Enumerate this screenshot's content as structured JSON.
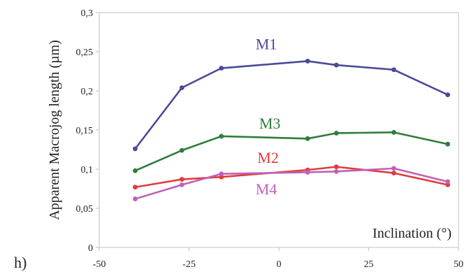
{
  "panel_label": "h)",
  "chart_data": {
    "type": "line",
    "xlabel": "Inclination (°)",
    "ylabel": "Apparent Macrojog length (µm)",
    "xlim": [
      -50,
      50
    ],
    "ylim": [
      0,
      0.3
    ],
    "x_ticks": [
      -50,
      -25,
      0,
      25,
      50
    ],
    "y_ticks": [
      0,
      0.05,
      0.1,
      0.15,
      0.2,
      0.25,
      0.3
    ],
    "x_tick_labels": [
      "-50",
      "-25",
      "0",
      "25",
      "50"
    ],
    "y_tick_labels": [
      "0",
      "0,05",
      "0,1",
      "0,15",
      "0,2",
      "0,25",
      "0,3"
    ],
    "grid": false,
    "x": [
      -40,
      -27,
      -16,
      8,
      16,
      32,
      47
    ],
    "series": [
      {
        "name": "M1",
        "color": "#4a4a96",
        "values": [
          0.126,
          0.204,
          0.229,
          0.238,
          0.233,
          0.227,
          0.195
        ],
        "label_at": [
          -3.5,
          0.253
        ]
      },
      {
        "name": "M3",
        "color": "#2e7d3c",
        "values": [
          0.098,
          0.124,
          0.142,
          0.139,
          0.146,
          0.147,
          0.132
        ],
        "label_at": [
          -2.5,
          0.152
        ]
      },
      {
        "name": "M2",
        "color": "#e03c3c",
        "values": [
          0.077,
          0.087,
          0.09,
          0.099,
          0.103,
          0.095,
          0.08
        ],
        "label_at": [
          -3,
          0.108
        ]
      },
      {
        "name": "M4",
        "color": "#c060b8",
        "values": [
          0.062,
          0.08,
          0.094,
          0.096,
          0.097,
          0.101,
          0.084
        ],
        "label_at": [
          -3.5,
          0.068
        ]
      }
    ]
  }
}
